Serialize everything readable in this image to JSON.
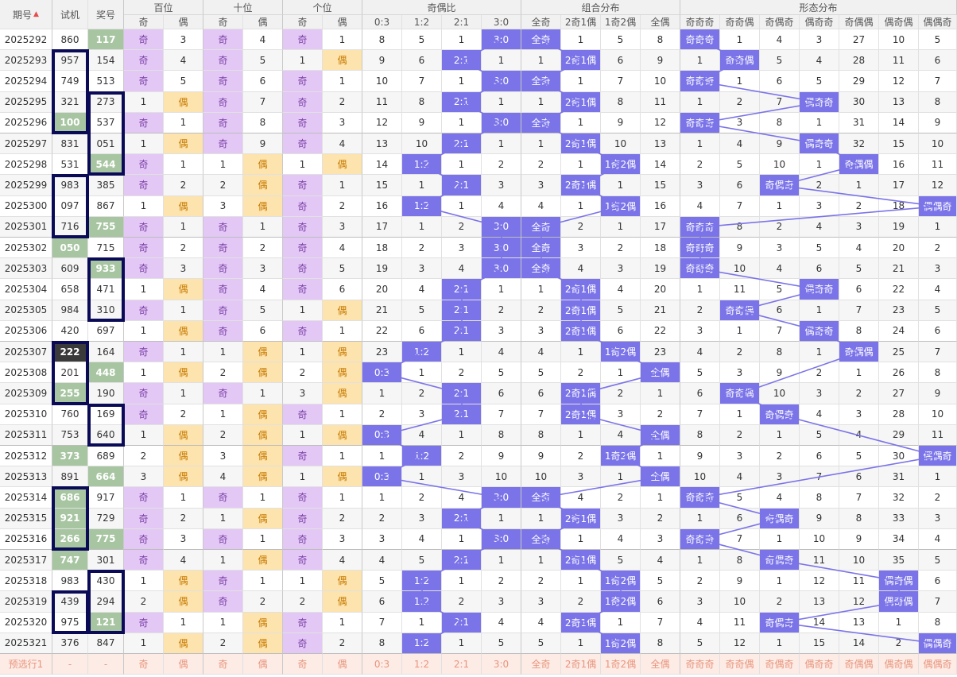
{
  "headers": {
    "period": "期号",
    "sort_icon": "sort-desc-arrow",
    "trial": "试机",
    "prize": "奖号",
    "groups": [
      "百位",
      "十位",
      "个位",
      "奇偶比",
      "组合分布",
      "形态分布"
    ],
    "odd": "奇",
    "even": "偶",
    "ratio": [
      "0:3",
      "1:2",
      "2:1",
      "3:0"
    ],
    "combo": [
      "全奇",
      "2奇1偶",
      "1奇2偶",
      "全偶"
    ],
    "form": [
      "奇奇奇",
      "奇奇偶",
      "奇偶奇",
      "偶奇奇",
      "奇偶偶",
      "偶奇偶",
      "偶偶奇"
    ]
  },
  "rows": [
    {
      "period": "2025292",
      "trial": "860",
      "prize": "117",
      "pos": [
        [
          "奇",
          "3"
        ],
        [
          "奇",
          "4"
        ],
        [
          "奇",
          "1"
        ]
      ],
      "ratio": [
        "8",
        "5",
        "1",
        "3:0"
      ],
      "combo": [
        "全奇",
        "1",
        "5",
        "8"
      ],
      "form": [
        "奇奇奇",
        "1",
        "4",
        "3",
        "27",
        "10",
        "5"
      ]
    },
    {
      "period": "2025293",
      "trial": "957",
      "prize": "154",
      "pos": [
        [
          "奇",
          "4"
        ],
        [
          "奇",
          "5"
        ],
        [
          "1",
          "偶"
        ]
      ],
      "ratio": [
        "9",
        "6",
        "2:1",
        "1"
      ],
      "combo": [
        "1",
        "2奇1偶",
        "6",
        "9"
      ],
      "form": [
        "1",
        "奇奇偶",
        "5",
        "4",
        "28",
        "11",
        "6"
      ]
    },
    {
      "period": "2025294",
      "trial": "749",
      "prize": "513",
      "pos": [
        [
          "奇",
          "5"
        ],
        [
          "奇",
          "6"
        ],
        [
          "奇",
          "1"
        ]
      ],
      "ratio": [
        "10",
        "7",
        "1",
        "3:0"
      ],
      "combo": [
        "全奇",
        "1",
        "7",
        "10"
      ],
      "form": [
        "奇奇奇",
        "1",
        "6",
        "5",
        "29",
        "12",
        "7"
      ]
    },
    {
      "period": "2025295",
      "trial": "321",
      "prize": "273",
      "pos": [
        [
          "1",
          "偶"
        ],
        [
          "奇",
          "7"
        ],
        [
          "奇",
          "2"
        ]
      ],
      "ratio": [
        "11",
        "8",
        "2:1",
        "1"
      ],
      "combo": [
        "1",
        "2奇1偶",
        "8",
        "11"
      ],
      "form": [
        "1",
        "2",
        "7",
        "偶奇奇",
        "30",
        "13",
        "8"
      ]
    },
    {
      "period": "2025296",
      "trial": "100",
      "prize": "537",
      "pos": [
        [
          "奇",
          "1"
        ],
        [
          "奇",
          "8"
        ],
        [
          "奇",
          "3"
        ]
      ],
      "ratio": [
        "12",
        "9",
        "1",
        "3:0"
      ],
      "combo": [
        "全奇",
        "1",
        "9",
        "12"
      ],
      "form": [
        "奇奇奇",
        "3",
        "8",
        "1",
        "31",
        "14",
        "9"
      ]
    },
    {
      "period": "2025297",
      "trial": "831",
      "prize": "051",
      "pos": [
        [
          "1",
          "偶"
        ],
        [
          "奇",
          "9"
        ],
        [
          "奇",
          "4"
        ]
      ],
      "ratio": [
        "13",
        "10",
        "2:1",
        "1"
      ],
      "combo": [
        "1",
        "2奇1偶",
        "10",
        "13"
      ],
      "form": [
        "1",
        "4",
        "9",
        "偶奇奇",
        "32",
        "15",
        "10"
      ]
    },
    {
      "period": "2025298",
      "trial": "531",
      "prize": "544",
      "pos": [
        [
          "奇",
          "1"
        ],
        [
          "1",
          "偶"
        ],
        [
          "1",
          "偶"
        ]
      ],
      "ratio": [
        "14",
        "1:2",
        "1",
        "2"
      ],
      "combo": [
        "2",
        "1",
        "1奇2偶",
        "14"
      ],
      "form": [
        "2",
        "5",
        "10",
        "1",
        "奇偶偶",
        "16",
        "11"
      ]
    },
    {
      "period": "2025299",
      "trial": "983",
      "prize": "385",
      "pos": [
        [
          "奇",
          "2"
        ],
        [
          "2",
          "偶"
        ],
        [
          "奇",
          "1"
        ]
      ],
      "ratio": [
        "15",
        "1",
        "2:1",
        "3"
      ],
      "combo": [
        "3",
        "2奇1偶",
        "1",
        "15"
      ],
      "form": [
        "3",
        "6",
        "奇偶奇",
        "2",
        "1",
        "17",
        "12"
      ]
    },
    {
      "period": "2025300",
      "trial": "097",
      "prize": "867",
      "pos": [
        [
          "1",
          "偶"
        ],
        [
          "3",
          "偶"
        ],
        [
          "奇",
          "2"
        ]
      ],
      "ratio": [
        "16",
        "1:2",
        "1",
        "4"
      ],
      "combo": [
        "4",
        "1",
        "1奇2偶",
        "16"
      ],
      "form": [
        "4",
        "7",
        "1",
        "3",
        "2",
        "18",
        "偶偶奇"
      ]
    },
    {
      "period": "2025301",
      "trial": "716",
      "prize": "755",
      "pos": [
        [
          "奇",
          "1"
        ],
        [
          "奇",
          "1"
        ],
        [
          "奇",
          "3"
        ]
      ],
      "ratio": [
        "17",
        "1",
        "2",
        "3:0"
      ],
      "combo": [
        "全奇",
        "2",
        "1",
        "17"
      ],
      "form": [
        "奇奇奇",
        "8",
        "2",
        "4",
        "3",
        "19",
        "1"
      ]
    },
    {
      "period": "2025302",
      "trial": "050",
      "prize": "715",
      "pos": [
        [
          "奇",
          "2"
        ],
        [
          "奇",
          "2"
        ],
        [
          "奇",
          "4"
        ]
      ],
      "ratio": [
        "18",
        "2",
        "3",
        "3:0"
      ],
      "combo": [
        "全奇",
        "3",
        "2",
        "18"
      ],
      "form": [
        "奇奇奇",
        "9",
        "3",
        "5",
        "4",
        "20",
        "2"
      ]
    },
    {
      "period": "2025303",
      "trial": "609",
      "prize": "933",
      "pos": [
        [
          "奇",
          "3"
        ],
        [
          "奇",
          "3"
        ],
        [
          "奇",
          "5"
        ]
      ],
      "ratio": [
        "19",
        "3",
        "4",
        "3:0"
      ],
      "combo": [
        "全奇",
        "4",
        "3",
        "19"
      ],
      "form": [
        "奇奇奇",
        "10",
        "4",
        "6",
        "5",
        "21",
        "3"
      ]
    },
    {
      "period": "2025304",
      "trial": "658",
      "prize": "471",
      "pos": [
        [
          "1",
          "偶"
        ],
        [
          "奇",
          "4"
        ],
        [
          "奇",
          "6"
        ]
      ],
      "ratio": [
        "20",
        "4",
        "2:1",
        "1"
      ],
      "combo": [
        "1",
        "2奇1偶",
        "4",
        "20"
      ],
      "form": [
        "1",
        "11",
        "5",
        "偶奇奇",
        "6",
        "22",
        "4"
      ]
    },
    {
      "period": "2025305",
      "trial": "984",
      "prize": "310",
      "pos": [
        [
          "奇",
          "1"
        ],
        [
          "奇",
          "5"
        ],
        [
          "1",
          "偶"
        ]
      ],
      "ratio": [
        "21",
        "5",
        "2:1",
        "2"
      ],
      "combo": [
        "2",
        "2奇1偶",
        "5",
        "21"
      ],
      "form": [
        "2",
        "奇奇偶",
        "6",
        "1",
        "7",
        "23",
        "5"
      ]
    },
    {
      "period": "2025306",
      "trial": "420",
      "prize": "697",
      "pos": [
        [
          "1",
          "偶"
        ],
        [
          "奇",
          "6"
        ],
        [
          "奇",
          "1"
        ]
      ],
      "ratio": [
        "22",
        "6",
        "2:1",
        "3"
      ],
      "combo": [
        "3",
        "2奇1偶",
        "6",
        "22"
      ],
      "form": [
        "3",
        "1",
        "7",
        "偶奇奇",
        "8",
        "24",
        "6"
      ]
    },
    {
      "period": "2025307",
      "trial": "222",
      "prize": "164",
      "pos": [
        [
          "奇",
          "1"
        ],
        [
          "1",
          "偶"
        ],
        [
          "1",
          "偶"
        ]
      ],
      "ratio": [
        "23",
        "1:2",
        "1",
        "4"
      ],
      "combo": [
        "4",
        "1",
        "1奇2偶",
        "23"
      ],
      "form": [
        "4",
        "2",
        "8",
        "1",
        "奇偶偶",
        "25",
        "7"
      ]
    },
    {
      "period": "2025308",
      "trial": "201",
      "prize": "448",
      "pos": [
        [
          "1",
          "偶"
        ],
        [
          "2",
          "偶"
        ],
        [
          "2",
          "偶"
        ]
      ],
      "ratio": [
        "0:3",
        "1",
        "2",
        "5"
      ],
      "combo": [
        "5",
        "2",
        "1",
        "全偶"
      ],
      "form": [
        "5",
        "3",
        "9",
        "2",
        "1",
        "26",
        "8"
      ]
    },
    {
      "period": "2025309",
      "trial": "255",
      "prize": "190",
      "pos": [
        [
          "奇",
          "1"
        ],
        [
          "奇",
          "1"
        ],
        [
          "3",
          "偶"
        ]
      ],
      "ratio": [
        "1",
        "2",
        "2:1",
        "6"
      ],
      "combo": [
        "6",
        "2奇1偶",
        "2",
        "1"
      ],
      "form": [
        "6",
        "奇奇偶",
        "10",
        "3",
        "2",
        "27",
        "9"
      ]
    },
    {
      "period": "2025310",
      "trial": "760",
      "prize": "169",
      "pos": [
        [
          "奇",
          "2"
        ],
        [
          "1",
          "偶"
        ],
        [
          "奇",
          "1"
        ]
      ],
      "ratio": [
        "2",
        "3",
        "2:1",
        "7"
      ],
      "combo": [
        "7",
        "2奇1偶",
        "3",
        "2"
      ],
      "form": [
        "7",
        "1",
        "奇偶奇",
        "4",
        "3",
        "28",
        "10"
      ]
    },
    {
      "period": "2025311",
      "trial": "753",
      "prize": "640",
      "pos": [
        [
          "1",
          "偶"
        ],
        [
          "2",
          "偶"
        ],
        [
          "1",
          "偶"
        ]
      ],
      "ratio": [
        "0:3",
        "4",
        "1",
        "8"
      ],
      "combo": [
        "8",
        "1",
        "4",
        "全偶"
      ],
      "form": [
        "8",
        "2",
        "1",
        "5",
        "4",
        "29",
        "11"
      ]
    },
    {
      "period": "2025312",
      "trial": "373",
      "prize": "689",
      "pos": [
        [
          "2",
          "偶"
        ],
        [
          "3",
          "偶"
        ],
        [
          "奇",
          "1"
        ]
      ],
      "ratio": [
        "1",
        "1:2",
        "2",
        "9"
      ],
      "combo": [
        "9",
        "2",
        "1奇2偶",
        "1"
      ],
      "form": [
        "9",
        "3",
        "2",
        "6",
        "5",
        "30",
        "偶偶奇"
      ]
    },
    {
      "period": "2025313",
      "trial": "891",
      "prize": "664",
      "pos": [
        [
          "3",
          "偶"
        ],
        [
          "4",
          "偶"
        ],
        [
          "1",
          "偶"
        ]
      ],
      "ratio": [
        "0:3",
        "1",
        "3",
        "10"
      ],
      "combo": [
        "10",
        "3",
        "1",
        "全偶"
      ],
      "form": [
        "10",
        "4",
        "3",
        "7",
        "6",
        "31",
        "1"
      ]
    },
    {
      "period": "2025314",
      "trial": "686",
      "prize": "917",
      "pos": [
        [
          "奇",
          "1"
        ],
        [
          "奇",
          "1"
        ],
        [
          "奇",
          "1"
        ]
      ],
      "ratio": [
        "1",
        "2",
        "4",
        "3:0"
      ],
      "combo": [
        "全奇",
        "4",
        "2",
        "1"
      ],
      "form": [
        "奇奇奇",
        "5",
        "4",
        "8",
        "7",
        "32",
        "2"
      ]
    },
    {
      "period": "2025315",
      "trial": "921",
      "prize": "729",
      "pos": [
        [
          "奇",
          "2"
        ],
        [
          "1",
          "偶"
        ],
        [
          "奇",
          "2"
        ]
      ],
      "ratio": [
        "2",
        "3",
        "2:1",
        "1"
      ],
      "combo": [
        "1",
        "2奇1偶",
        "3",
        "2"
      ],
      "form": [
        "1",
        "6",
        "奇偶奇",
        "9",
        "8",
        "33",
        "3"
      ]
    },
    {
      "period": "2025316",
      "trial": "266",
      "prize": "775",
      "pos": [
        [
          "奇",
          "3"
        ],
        [
          "奇",
          "1"
        ],
        [
          "奇",
          "3"
        ]
      ],
      "ratio": [
        "3",
        "4",
        "1",
        "3:0"
      ],
      "combo": [
        "全奇",
        "1",
        "4",
        "3"
      ],
      "form": [
        "奇奇奇",
        "7",
        "1",
        "10",
        "9",
        "34",
        "4"
      ]
    },
    {
      "period": "2025317",
      "trial": "747",
      "prize": "301",
      "pos": [
        [
          "奇",
          "4"
        ],
        [
          "1",
          "偶"
        ],
        [
          "奇",
          "4"
        ]
      ],
      "ratio": [
        "4",
        "5",
        "2:1",
        "1"
      ],
      "combo": [
        "1",
        "2奇1偶",
        "5",
        "4"
      ],
      "form": [
        "1",
        "8",
        "奇偶奇",
        "11",
        "10",
        "35",
        "5"
      ]
    },
    {
      "period": "2025318",
      "trial": "983",
      "prize": "430",
      "pos": [
        [
          "1",
          "偶"
        ],
        [
          "奇",
          "1"
        ],
        [
          "1",
          "偶"
        ]
      ],
      "ratio": [
        "5",
        "1:2",
        "1",
        "2"
      ],
      "combo": [
        "2",
        "1",
        "1奇2偶",
        "5"
      ],
      "form": [
        "2",
        "9",
        "1",
        "12",
        "11",
        "偶奇偶",
        "6"
      ]
    },
    {
      "period": "2025319",
      "trial": "439",
      "prize": "294",
      "pos": [
        [
          "2",
          "偶"
        ],
        [
          "奇",
          "2"
        ],
        [
          "2",
          "偶"
        ]
      ],
      "ratio": [
        "6",
        "1:2",
        "2",
        "3"
      ],
      "combo": [
        "3",
        "2",
        "1奇2偶",
        "6"
      ],
      "form": [
        "3",
        "10",
        "2",
        "13",
        "12",
        "偶奇偶",
        "7"
      ]
    },
    {
      "period": "2025320",
      "trial": "975",
      "prize": "121",
      "pos": [
        [
          "奇",
          "1"
        ],
        [
          "1",
          "偶"
        ],
        [
          "奇",
          "1"
        ]
      ],
      "ratio": [
        "7",
        "1",
        "2:1",
        "4"
      ],
      "combo": [
        "4",
        "2奇1偶",
        "1",
        "7"
      ],
      "form": [
        "4",
        "11",
        "奇偶奇",
        "14",
        "13",
        "1",
        "8"
      ]
    },
    {
      "period": "2025321",
      "trial": "376",
      "prize": "847",
      "pos": [
        [
          "1",
          "偶"
        ],
        [
          "2",
          "偶"
        ],
        [
          "奇",
          "2"
        ]
      ],
      "ratio": [
        "8",
        "1:2",
        "1",
        "5"
      ],
      "combo": [
        "5",
        "1",
        "1奇2偶",
        "8"
      ],
      "form": [
        "5",
        "12",
        "1",
        "15",
        "14",
        "2",
        "偶偶奇"
      ]
    }
  ],
  "highlight": {
    "trial": {
      "2025296": "g",
      "2025302": "g",
      "2025307": "d",
      "2025309": "g",
      "2025312": "g",
      "2025314": "g",
      "2025315": "g",
      "2025316": "g",
      "2025317": "g"
    },
    "prize": {
      "2025292": "g",
      "2025298": "g",
      "2025301": "g",
      "2025303": "g",
      "2025308": "g",
      "2025313": "g",
      "2025316": "g",
      "2025320": "g"
    }
  },
  "prediction": {
    "label": "预选行1",
    "trial": "-",
    "prize": "-",
    "cells": [
      "奇",
      "偶",
      "奇",
      "偶",
      "奇",
      "偶",
      "0:3",
      "1:2",
      "2:1",
      "3:0",
      "全奇",
      "2奇1偶",
      "1奇2偶",
      "全偶",
      "奇奇奇",
      "奇奇偶",
      "奇偶奇",
      "偶奇奇",
      "奇偶偶",
      "偶奇偶",
      "偶偶奇"
    ]
  },
  "colors": {
    "odd_bg": "#e3c8f5",
    "even_bg": "#fde3ad",
    "hit_bg": "#7b74e8",
    "line": "#7b74e8",
    "frame": "#0a0a57",
    "green_bg": "#a7c5a1"
  }
}
